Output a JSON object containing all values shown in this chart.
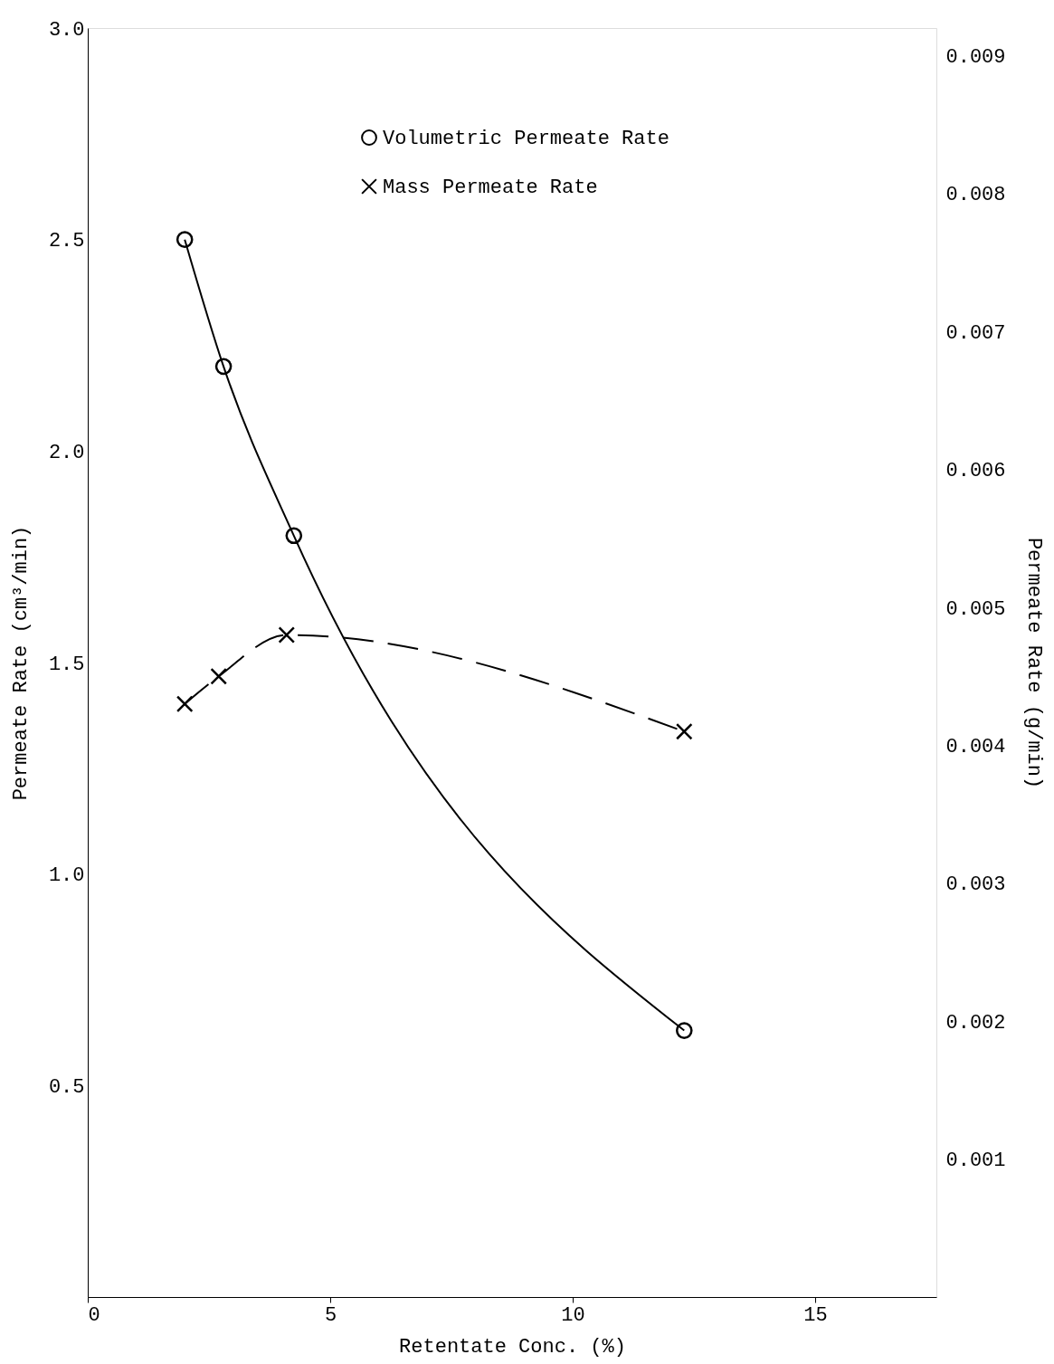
{
  "chart_data": {
    "type": "line",
    "xlabel": "Retentate Conc. (%)",
    "ylabel": "Permeate Rate (cm³/min)",
    "y2label": "Permeate Rate (g/min)",
    "xlim": [
      0,
      17.5
    ],
    "xticks": [
      0,
      5,
      10,
      15
    ],
    "ylim": [
      0,
      3.0
    ],
    "yticks": [
      {
        "value": 0.5,
        "label": "0.5"
      },
      {
        "value": 1,
        "label": "1.0"
      },
      {
        "value": 1.5,
        "label": "1.5"
      },
      {
        "value": 2,
        "label": "2.0"
      },
      {
        "value": 2.5,
        "label": "2.5"
      },
      {
        "value": 3,
        "label": "3.0"
      }
    ],
    "y2lim": [
      0,
      0.0092
    ],
    "y2ticks": [
      {
        "value": 0.001,
        "label": "0.001"
      },
      {
        "value": 0.002,
        "label": "0.002"
      },
      {
        "value": 0.003,
        "label": "0.003"
      },
      {
        "value": 0.004,
        "label": "0.004"
      },
      {
        "value": 0.005,
        "label": "0.005"
      },
      {
        "value": 0.006,
        "label": "0.006"
      },
      {
        "value": 0.007,
        "label": "0.007"
      },
      {
        "value": 0.008,
        "label": "0.008"
      },
      {
        "value": 0.009,
        "label": "0.009"
      }
    ],
    "grid": false,
    "legend": "top",
    "series": [
      {
        "name": "Volumetric Permeate Rate",
        "color": "#000000",
        "x": [
          2.0,
          2.8,
          4.25,
          12.3
        ],
        "values": [
          2.5,
          2.2,
          1.8,
          0.63
        ],
        "marker": "circle",
        "line_style": "solid"
      },
      {
        "name": "Mass Permeate Rate",
        "color": "#000000",
        "x": [
          2.0,
          2.7,
          4.1,
          12.3
        ],
        "values": [
          0.0043,
          0.0045,
          0.0048,
          0.0041
        ],
        "axis": "y2",
        "marker": "cross",
        "line_style": "dashed"
      }
    ]
  }
}
